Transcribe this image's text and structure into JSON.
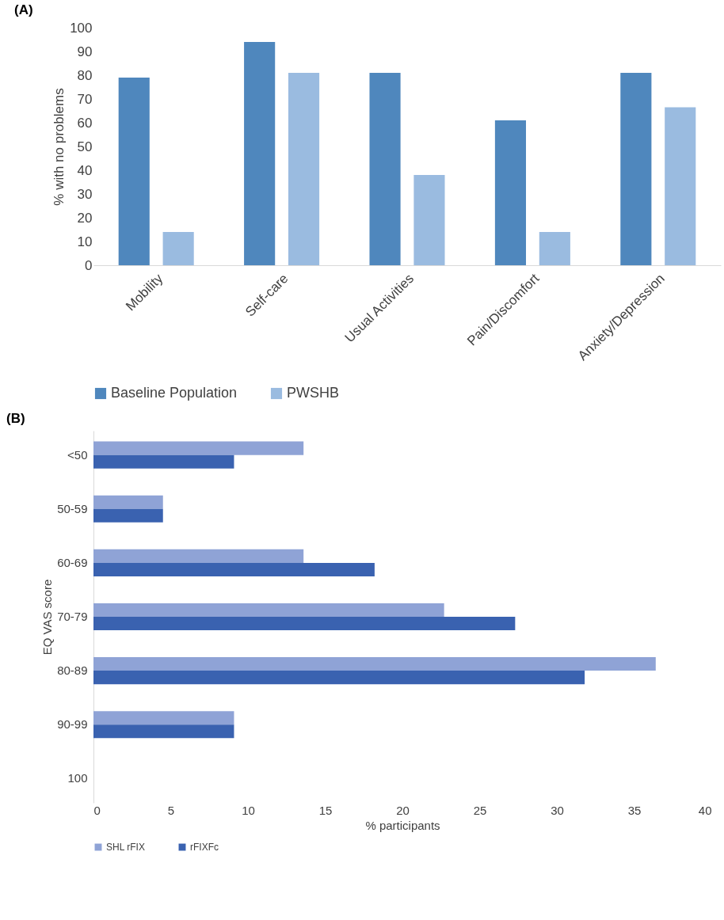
{
  "chart_data": [
    {
      "type": "bar",
      "title": "(A)",
      "ylabel": "% with no problems",
      "categories": [
        "Mobility",
        "Self-care",
        "Usual Activities",
        "Pain/Discomfort",
        "Anxiety/Depression"
      ],
      "series": [
        {
          "name": "Baseline Population",
          "color": "#4f87bd",
          "values": [
            79,
            94,
            81,
            61,
            81
          ]
        },
        {
          "name": "PWSHB",
          "color": "#9abbe0",
          "values": [
            14,
            81,
            38,
            14,
            66.5
          ]
        }
      ],
      "ylim": [
        0,
        100
      ],
      "yticks": [
        0,
        10,
        20,
        30,
        40,
        50,
        60,
        70,
        80,
        90,
        100
      ],
      "grid": false,
      "legend": "bottom"
    },
    {
      "type": "bar",
      "title": "(B)",
      "orientation": "horizontal",
      "xlabel": "% participants",
      "ylabel": "EQ VAS score",
      "categories": [
        "<50",
        "50-59",
        "60-69",
        "70-79",
        "80-89",
        "90-99",
        "100"
      ],
      "series": [
        {
          "name": "SHL rFIX",
          "color": "#8fa3d6",
          "values": [
            13.6,
            4.5,
            13.6,
            22.7,
            36.4,
            9.1,
            0
          ]
        },
        {
          "name": "rFIXFc",
          "color": "#3a62b0",
          "values": [
            9.1,
            4.5,
            18.2,
            27.3,
            31.8,
            9.1,
            0
          ]
        }
      ],
      "xlim": [
        0,
        40
      ],
      "xticks": [
        0,
        5,
        10,
        15,
        20,
        25,
        30,
        35,
        40
      ],
      "grid": false,
      "legend": "bottom"
    }
  ]
}
